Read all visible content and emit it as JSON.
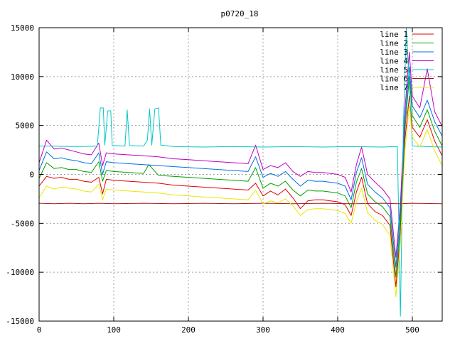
{
  "chart_data": {
    "type": "line",
    "title": "p0720_18",
    "xlabel": "",
    "ylabel": "",
    "xlim": [
      0,
      540
    ],
    "ylim": [
      -15000,
      15000
    ],
    "xticks": [
      0,
      100,
      200,
      300,
      400,
      500
    ],
    "yticks": [
      -15000,
      -10000,
      -5000,
      0,
      5000,
      10000,
      15000
    ],
    "grid": true,
    "legend_position": "top-right",
    "series": [
      {
        "name": "line 1",
        "color": "#e00000",
        "points": [
          [
            0,
            -1200
          ],
          [
            10,
            -200
          ],
          [
            20,
            -400
          ],
          [
            30,
            -300
          ],
          [
            40,
            -500
          ],
          [
            50,
            -500
          ],
          [
            60,
            -700
          ],
          [
            70,
            -800
          ],
          [
            80,
            -300
          ],
          [
            85,
            -2000
          ],
          [
            90,
            -500
          ],
          [
            100,
            -600
          ],
          [
            120,
            -700
          ],
          [
            140,
            -800
          ],
          [
            160,
            -900
          ],
          [
            180,
            -1100
          ],
          [
            200,
            -1200
          ],
          [
            220,
            -1300
          ],
          [
            240,
            -1400
          ],
          [
            260,
            -1500
          ],
          [
            280,
            -1600
          ],
          [
            290,
            -900
          ],
          [
            300,
            -2200
          ],
          [
            310,
            -1700
          ],
          [
            320,
            -2100
          ],
          [
            330,
            -1500
          ],
          [
            340,
            -2400
          ],
          [
            350,
            -3500
          ],
          [
            360,
            -2700
          ],
          [
            370,
            -2600
          ],
          [
            380,
            -2600
          ],
          [
            390,
            -2700
          ],
          [
            400,
            -2800
          ],
          [
            410,
            -3100
          ],
          [
            418,
            -4200
          ],
          [
            425,
            -1800
          ],
          [
            432,
            -300
          ],
          [
            440,
            -3000
          ],
          [
            450,
            -3800
          ],
          [
            460,
            -4200
          ],
          [
            470,
            -5200
          ],
          [
            478,
            -11500
          ],
          [
            484,
            -6000
          ],
          [
            490,
            3500
          ],
          [
            496,
            8000
          ],
          [
            500,
            4800
          ],
          [
            510,
            3800
          ],
          [
            520,
            5600
          ],
          [
            530,
            3400
          ],
          [
            540,
            1900
          ]
        ]
      },
      {
        "name": "line 2",
        "color": "#00a000",
        "points": [
          [
            0,
            -400
          ],
          [
            10,
            1200
          ],
          [
            20,
            600
          ],
          [
            30,
            700
          ],
          [
            40,
            500
          ],
          [
            50,
            500
          ],
          [
            60,
            300
          ],
          [
            70,
            200
          ],
          [
            80,
            1300
          ],
          [
            85,
            -700
          ],
          [
            90,
            400
          ],
          [
            100,
            300
          ],
          [
            120,
            200
          ],
          [
            140,
            100
          ],
          [
            147,
            1000
          ],
          [
            160,
            -100
          ],
          [
            180,
            -200
          ],
          [
            200,
            -300
          ],
          [
            220,
            -400
          ],
          [
            240,
            -500
          ],
          [
            260,
            -600
          ],
          [
            280,
            -700
          ],
          [
            290,
            700
          ],
          [
            300,
            -1400
          ],
          [
            310,
            -900
          ],
          [
            320,
            -1200
          ],
          [
            330,
            -700
          ],
          [
            340,
            -1600
          ],
          [
            350,
            -2200
          ],
          [
            360,
            -1600
          ],
          [
            370,
            -1700
          ],
          [
            380,
            -1700
          ],
          [
            390,
            -1800
          ],
          [
            400,
            -1900
          ],
          [
            410,
            -2200
          ],
          [
            418,
            -3400
          ],
          [
            425,
            -800
          ],
          [
            432,
            600
          ],
          [
            440,
            -2000
          ],
          [
            450,
            -2800
          ],
          [
            460,
            -3300
          ],
          [
            470,
            -4300
          ],
          [
            478,
            -10500
          ],
          [
            484,
            -5000
          ],
          [
            490,
            4500
          ],
          [
            496,
            10000
          ],
          [
            500,
            6000
          ],
          [
            510,
            4800
          ],
          [
            520,
            6600
          ],
          [
            530,
            4400
          ],
          [
            540,
            2900
          ]
        ]
      },
      {
        "name": "line 3",
        "color": "#0070e0",
        "points": [
          [
            0,
            400
          ],
          [
            10,
            2300
          ],
          [
            20,
            1600
          ],
          [
            30,
            1700
          ],
          [
            40,
            1500
          ],
          [
            50,
            1400
          ],
          [
            60,
            1200
          ],
          [
            70,
            1100
          ],
          [
            80,
            2200
          ],
          [
            85,
            0
          ],
          [
            90,
            1300
          ],
          [
            100,
            1200
          ],
          [
            120,
            1100
          ],
          [
            140,
            1000
          ],
          [
            160,
            900
          ],
          [
            180,
            800
          ],
          [
            200,
            700
          ],
          [
            220,
            600
          ],
          [
            240,
            500
          ],
          [
            260,
            400
          ],
          [
            280,
            300
          ],
          [
            290,
            1800
          ],
          [
            300,
            -300
          ],
          [
            310,
            100
          ],
          [
            320,
            -200
          ],
          [
            330,
            300
          ],
          [
            340,
            -500
          ],
          [
            350,
            -1200
          ],
          [
            360,
            -600
          ],
          [
            370,
            -700
          ],
          [
            380,
            -700
          ],
          [
            390,
            -800
          ],
          [
            400,
            -900
          ],
          [
            410,
            -1200
          ],
          [
            418,
            -2600
          ],
          [
            425,
            200
          ],
          [
            432,
            1700
          ],
          [
            440,
            -1000
          ],
          [
            450,
            -1800
          ],
          [
            460,
            -2400
          ],
          [
            470,
            -3400
          ],
          [
            478,
            -9500
          ],
          [
            484,
            -4000
          ],
          [
            490,
            5500
          ],
          [
            496,
            11000
          ],
          [
            500,
            7000
          ],
          [
            510,
            5800
          ],
          [
            520,
            7600
          ],
          [
            530,
            5400
          ],
          [
            540,
            3900
          ]
        ]
      },
      {
        "name": "line 4",
        "color": "#c000c0",
        "points": [
          [
            0,
            1200
          ],
          [
            10,
            3500
          ],
          [
            20,
            2600
          ],
          [
            30,
            2700
          ],
          [
            40,
            2500
          ],
          [
            50,
            2300
          ],
          [
            60,
            2100
          ],
          [
            70,
            2000
          ],
          [
            80,
            3200
          ],
          [
            85,
            900
          ],
          [
            90,
            2200
          ],
          [
            100,
            2100
          ],
          [
            120,
            2000
          ],
          [
            140,
            1900
          ],
          [
            160,
            1800
          ],
          [
            180,
            1600
          ],
          [
            200,
            1500
          ],
          [
            220,
            1400
          ],
          [
            240,
            1300
          ],
          [
            260,
            1200
          ],
          [
            280,
            1100
          ],
          [
            290,
            3000
          ],
          [
            300,
            500
          ],
          [
            310,
            900
          ],
          [
            320,
            700
          ],
          [
            330,
            1200
          ],
          [
            340,
            300
          ],
          [
            350,
            -200
          ],
          [
            360,
            300
          ],
          [
            370,
            200
          ],
          [
            380,
            200
          ],
          [
            390,
            100
          ],
          [
            400,
            0
          ],
          [
            410,
            -300
          ],
          [
            418,
            -1800
          ],
          [
            425,
            1000
          ],
          [
            432,
            2800
          ],
          [
            440,
            0
          ],
          [
            450,
            -800
          ],
          [
            460,
            -1500
          ],
          [
            470,
            -2500
          ],
          [
            478,
            -8500
          ],
          [
            484,
            -3000
          ],
          [
            490,
            6500
          ],
          [
            496,
            12500
          ],
          [
            500,
            8000
          ],
          [
            510,
            6800
          ],
          [
            520,
            10800
          ],
          [
            530,
            6400
          ],
          [
            540,
            4900
          ]
        ]
      },
      {
        "name": "line 5",
        "color": "#00c8c8",
        "points": [
          [
            0,
            2900
          ],
          [
            20,
            2900
          ],
          [
            40,
            2850
          ],
          [
            60,
            2850
          ],
          [
            78,
            2900
          ],
          [
            82,
            6800
          ],
          [
            86,
            6800
          ],
          [
            88,
            3000
          ],
          [
            92,
            6500
          ],
          [
            96,
            6500
          ],
          [
            98,
            2950
          ],
          [
            115,
            2900
          ],
          [
            118,
            6600
          ],
          [
            121,
            2950
          ],
          [
            140,
            2900
          ],
          [
            145,
            3500
          ],
          [
            148,
            6700
          ],
          [
            151,
            3000
          ],
          [
            155,
            6700
          ],
          [
            160,
            6800
          ],
          [
            163,
            3000
          ],
          [
            180,
            2850
          ],
          [
            220,
            2800
          ],
          [
            260,
            2850
          ],
          [
            300,
            2800
          ],
          [
            340,
            2850
          ],
          [
            380,
            2800
          ],
          [
            420,
            2850
          ],
          [
            460,
            2800
          ],
          [
            480,
            2850
          ],
          [
            484,
            -14500
          ],
          [
            488,
            5000
          ],
          [
            492,
            15000
          ],
          [
            500,
            2900
          ],
          [
            540,
            2800
          ]
        ]
      },
      {
        "name": "line 6",
        "color": "#a02020",
        "points": [
          [
            0,
            -2950
          ],
          [
            20,
            -3000
          ],
          [
            40,
            -2950
          ],
          [
            60,
            -3000
          ],
          [
            80,
            -2950
          ],
          [
            100,
            -3000
          ],
          [
            140,
            -2950
          ],
          [
            180,
            -3000
          ],
          [
            220,
            -2950
          ],
          [
            260,
            -3000
          ],
          [
            300,
            -2950
          ],
          [
            340,
            -3000
          ],
          [
            380,
            -2950
          ],
          [
            420,
            -3000
          ],
          [
            460,
            -2950
          ],
          [
            480,
            -3000
          ],
          [
            500,
            -2950
          ],
          [
            540,
            -3000
          ]
        ]
      },
      {
        "name": "line 7",
        "color": "#e8e800",
        "points": [
          [
            0,
            -2400
          ],
          [
            10,
            -1200
          ],
          [
            20,
            -1500
          ],
          [
            30,
            -1300
          ],
          [
            40,
            -1400
          ],
          [
            50,
            -1500
          ],
          [
            60,
            -1700
          ],
          [
            70,
            -1800
          ],
          [
            80,
            -1000
          ],
          [
            85,
            -2600
          ],
          [
            90,
            -1500
          ],
          [
            100,
            -1600
          ],
          [
            120,
            -1700
          ],
          [
            140,
            -1800
          ],
          [
            160,
            -1900
          ],
          [
            180,
            -2100
          ],
          [
            200,
            -2200
          ],
          [
            220,
            -2300
          ],
          [
            240,
            -2400
          ],
          [
            260,
            -2500
          ],
          [
            280,
            -2600
          ],
          [
            290,
            -1600
          ],
          [
            300,
            -3000
          ],
          [
            310,
            -2700
          ],
          [
            320,
            -2900
          ],
          [
            330,
            -2500
          ],
          [
            340,
            -3200
          ],
          [
            350,
            -4200
          ],
          [
            360,
            -3600
          ],
          [
            370,
            -3500
          ],
          [
            380,
            -3500
          ],
          [
            390,
            -3600
          ],
          [
            400,
            -3700
          ],
          [
            410,
            -4000
          ],
          [
            418,
            -5000
          ],
          [
            425,
            -2800
          ],
          [
            432,
            -1400
          ],
          [
            440,
            -3900
          ],
          [
            450,
            -4700
          ],
          [
            460,
            -5100
          ],
          [
            470,
            -6200
          ],
          [
            478,
            -12500
          ],
          [
            484,
            -7000
          ],
          [
            490,
            2500
          ],
          [
            496,
            7000
          ],
          [
            500,
            3800
          ],
          [
            510,
            2800
          ],
          [
            520,
            4600
          ],
          [
            530,
            2400
          ],
          [
            540,
            900
          ]
        ]
      }
    ]
  }
}
